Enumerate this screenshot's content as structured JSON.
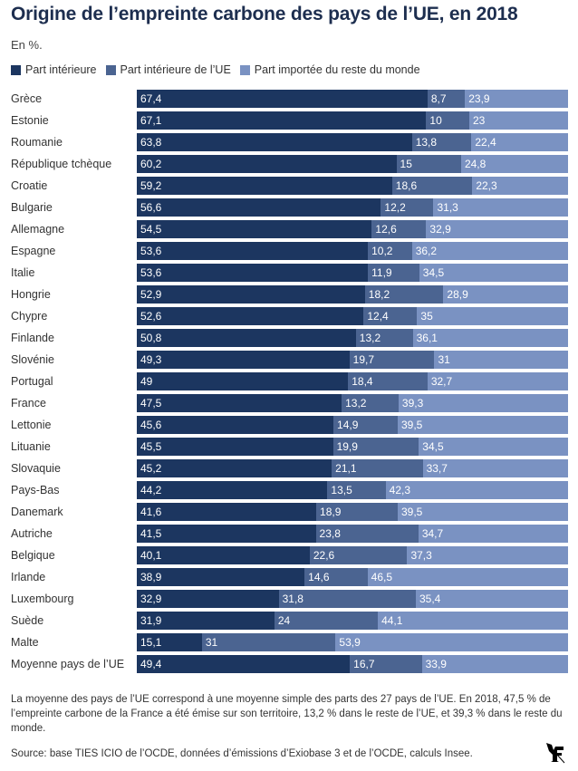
{
  "header": {
    "title": "Origine de l’empreinte carbone des pays de l’UE, en 2018",
    "subtitle": "En %."
  },
  "legend": [
    {
      "label": "Part intérieure",
      "color": "#1c3660"
    },
    {
      "label": "Part intérieure de l’UE",
      "color": "#4b6491"
    },
    {
      "label": "Part importée du reste du monde",
      "color": "#7a92c2"
    }
  ],
  "chart_data": {
    "type": "bar",
    "orientation": "horizontal",
    "stacked": true,
    "title": "Origine de l’empreinte carbone des pays de l’UE, en 2018",
    "subtitle": "En %.",
    "xlabel": "",
    "ylabel": "",
    "xlim": [
      0,
      100
    ],
    "grid": false,
    "legend_position": "top-left",
    "categories": [
      "Grèce",
      "Estonie",
      "Roumanie",
      "République tchèque",
      "Croatie",
      "Bulgarie",
      "Allemagne",
      "Espagne",
      "Italie",
      "Hongrie",
      "Chypre",
      "Finlande",
      "Slovénie",
      "Portugal",
      "France",
      "Lettonie",
      "Lituanie",
      "Slovaquie",
      "Pays-Bas",
      "Danemark",
      "Autriche",
      "Belgique",
      "Irlande",
      "Luxembourg",
      "Suède",
      "Malte",
      "Moyenne pays de l’UE"
    ],
    "series": [
      {
        "name": "Part intérieure",
        "color": "#1c3660",
        "values": [
          67.4,
          67.1,
          63.8,
          60.2,
          59.2,
          56.6,
          54.5,
          53.6,
          53.6,
          52.9,
          52.6,
          50.8,
          49.3,
          49,
          47.5,
          45.6,
          45.5,
          45.2,
          44.2,
          41.6,
          41.5,
          40.1,
          38.9,
          32.9,
          31.9,
          15.1,
          49.4
        ],
        "labels": [
          "67,4",
          "67,1",
          "63,8",
          "60,2",
          "59,2",
          "56,6",
          "54,5",
          "53,6",
          "53,6",
          "52,9",
          "52,6",
          "50,8",
          "49,3",
          "49",
          "47,5",
          "45,6",
          "45,5",
          "45,2",
          "44,2",
          "41,6",
          "41,5",
          "40,1",
          "38,9",
          "32,9",
          "31,9",
          "15,1",
          "49,4"
        ]
      },
      {
        "name": "Part intérieure de l’UE",
        "color": "#4b6491",
        "values": [
          8.7,
          10,
          13.8,
          15,
          18.6,
          12.2,
          12.6,
          10.2,
          11.9,
          18.2,
          12.4,
          13.2,
          19.7,
          18.4,
          13.2,
          14.9,
          19.9,
          21.1,
          13.5,
          18.9,
          23.8,
          22.6,
          14.6,
          31.8,
          24,
          31,
          16.7
        ],
        "labels": [
          "8,7",
          "10",
          "13,8",
          "15",
          "18,6",
          "12,2",
          "12,6",
          "10,2",
          "11,9",
          "18,2",
          "12,4",
          "13,2",
          "19,7",
          "18,4",
          "13,2",
          "14,9",
          "19,9",
          "21,1",
          "13,5",
          "18,9",
          "23,8",
          "22,6",
          "14,6",
          "31,8",
          "24",
          "31",
          "16,7"
        ]
      },
      {
        "name": "Part importée du reste du monde",
        "color": "#7a92c2",
        "values": [
          23.9,
          23,
          22.4,
          24.8,
          22.3,
          31.3,
          32.9,
          36.2,
          34.5,
          28.9,
          35,
          36.1,
          31,
          32.7,
          39.3,
          39.5,
          34.5,
          33.7,
          42.3,
          39.5,
          34.7,
          37.3,
          46.5,
          35.4,
          44.1,
          53.9,
          33.9
        ],
        "labels": [
          "23,9",
          "23",
          "22,4",
          "24,8",
          "22,3",
          "31,3",
          "32,9",
          "36,2",
          "34,5",
          "28,9",
          "35",
          "36,1",
          "31",
          "32,7",
          "39,3",
          "39,5",
          "34,5",
          "33,7",
          "42,3",
          "39,5",
          "34,7",
          "37,3",
          "46,5",
          "35,4",
          "44,1",
          "53,9",
          "33,9"
        ]
      }
    ]
  },
  "footer": {
    "note": "La moyenne des pays de l’UE correspond à une moyenne simple des parts des 27 pays de l’UE. En 2018, 47,5 % de l’empreinte carbone de la France a été émise sur son territoire, 13,2 % dans le reste de l’UE, et 39,3 % dans le reste du monde.",
    "source": "Source: base TIES ICIO de l’OCDE, données d’émissions d’Exiobase 3 et de l’OCDE, calculs Insee.",
    "logo": "le-figaro-logo"
  }
}
